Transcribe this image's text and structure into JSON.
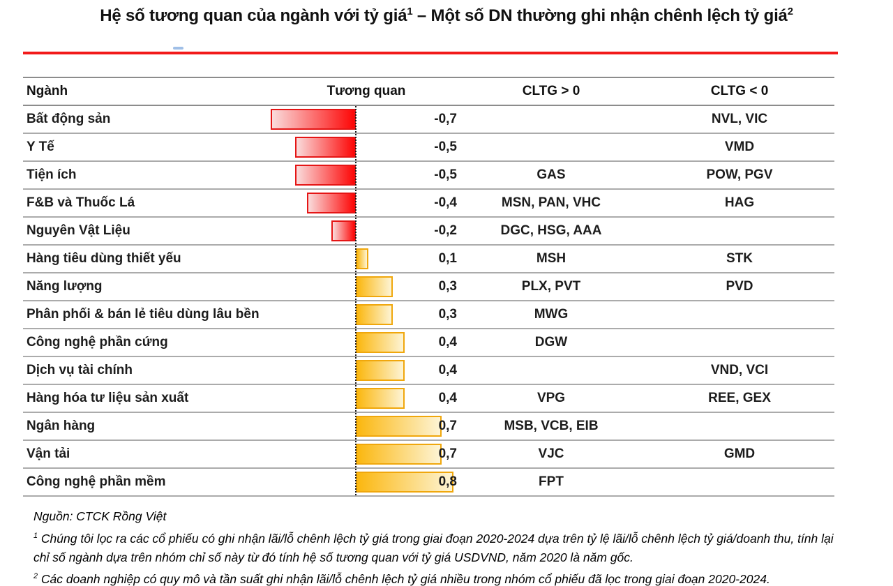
{
  "title": {
    "part1": "Hệ số tương quan của ngành với tỷ giá",
    "sup1": "1",
    "part2": " – Một số DN thường ghi nhận chênh lệch tỷ giá",
    "sup2": "2"
  },
  "table": {
    "headers": {
      "nganh": "Ngành",
      "tuong_quan": "Tương quan",
      "cltg_pos": "CLTG > 0",
      "cltg_neg": "CLTG < 0"
    }
  },
  "chart_data": {
    "type": "bar",
    "orientation": "horizontal",
    "title": "Hệ số tương quan của ngành với tỷ giá",
    "xlabel": "Tương quan",
    "xlim": [
      -0.8,
      0.9
    ],
    "zero_axis": "dotted vertical line",
    "categories": [
      "Bất động sản",
      "Y Tế",
      "Tiện ích",
      "F&B và Thuốc Lá",
      "Nguyên Vật Liệu",
      "Hàng tiêu dùng thiết yếu",
      "Năng lượng",
      "Phân phối & bán lẻ tiêu dùng lâu bền",
      "Công nghệ phần cứng",
      "Dịch vụ tài chính",
      "Hàng hóa tư liệu sản xuất",
      "Ngân hàng",
      "Vận tải",
      "Công nghệ phần mềm"
    ],
    "values": [
      -0.7,
      -0.5,
      -0.5,
      -0.4,
      -0.2,
      0.1,
      0.3,
      0.3,
      0.4,
      0.4,
      0.4,
      0.7,
      0.7,
      0.8
    ],
    "value_labels": [
      "-0,7",
      "-0,5",
      "-0,5",
      "-0,4",
      "-0,2",
      "0,1",
      "0,3",
      "0,3",
      "0,4",
      "0,4",
      "0,4",
      "0,7",
      "0,7",
      "0,8"
    ],
    "cltg_pos": [
      "",
      "",
      "GAS",
      "MSN, PAN, VHC",
      "DGC, HSG, AAA",
      "MSH",
      "PLX, PVT",
      "MWG",
      "DGW",
      "",
      "VPG",
      "MSB, VCB, EIB",
      "VJC",
      "FPT"
    ],
    "cltg_neg": [
      "NVL, VIC",
      "VMD",
      "POW, PGV",
      "HAG",
      "",
      "STK",
      "PVD",
      "",
      "",
      "VND, VCI",
      "REE, GEX",
      "",
      "GMD",
      ""
    ],
    "colors": {
      "negative": {
        "border": "#e51515",
        "strong": "#fd0606",
        "light": "#fadcdc"
      },
      "positive": {
        "border": "#f0a70c",
        "strong": "#fbb70f",
        "light": "#fdf4d5"
      },
      "rule_red": "#f21a1a",
      "blue_mark": "#8fb4e3"
    }
  },
  "footer": {
    "source": "Nguồn: CTCK Rồng Việt",
    "note1_sup": "1",
    "note1": "Chúng tôi lọc ra các cổ phiếu có ghi nhận lãi/lỗ chênh lệch tỷ giá trong giai đoạn 2020-2024 dựa trên tỷ lệ lãi/lỗ chênh lệch tỷ giá/doanh thu, tính lại chỉ số ngành dựa trên nhóm chỉ số này từ đó tính hệ số tương quan với tỷ giá USDVND, năm 2020 là năm gốc.",
    "note2_sup": "2",
    "note2": "Các doanh nghiệp có quy mô và tần suất ghi nhận lãi/lỗ chênh lệch tỷ giá nhiều trong nhóm cổ phiếu đã lọc trong giai đoạn 2020-2024."
  }
}
